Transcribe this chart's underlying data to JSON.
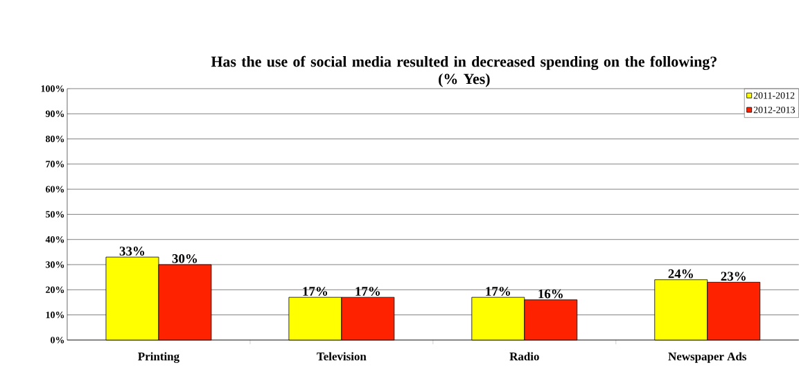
{
  "chart_data": {
    "type": "bar",
    "title": "Has the use of social media resulted in decreased spending on the following?",
    "subtitle": "(% Yes)",
    "categories": [
      "Printing",
      "Television",
      "Radio",
      "Newspaper Ads"
    ],
    "series": [
      {
        "name": "2011-2012",
        "color": "#ffff00",
        "values": [
          33,
          17,
          17,
          24
        ],
        "value_labels": [
          "33%",
          "17%",
          "17%",
          "24%"
        ]
      },
      {
        "name": "2012-2013",
        "color": "#ff2200",
        "values": [
          30,
          17,
          16,
          23
        ],
        "value_labels": [
          "30%",
          "17%",
          "16%",
          "23%"
        ]
      }
    ],
    "ylim": [
      0,
      100
    ],
    "yticks": [
      {
        "value": 0,
        "label": "0%"
      },
      {
        "value": 10,
        "label": "10%"
      },
      {
        "value": 20,
        "label": "20%"
      },
      {
        "value": 30,
        "label": "30%"
      },
      {
        "value": 40,
        "label": "40%"
      },
      {
        "value": 50,
        "label": "50%"
      },
      {
        "value": 60,
        "label": "60%"
      },
      {
        "value": 70,
        "label": "70%"
      },
      {
        "value": 80,
        "label": "80%"
      },
      {
        "value": 90,
        "label": "90%"
      },
      {
        "value": 100,
        "label": "100%"
      }
    ],
    "grid": "y",
    "legend": "top right"
  }
}
